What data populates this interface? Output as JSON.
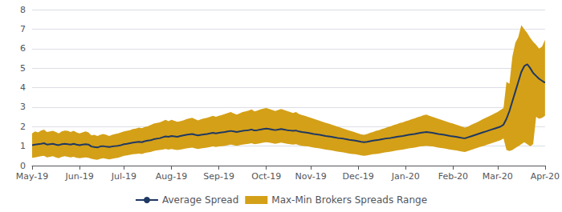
{
  "chart_data": {
    "type": "line",
    "categories": [
      "May-19",
      null,
      null,
      null,
      null,
      null,
      null,
      null,
      null,
      null,
      null,
      null,
      null,
      null,
      null,
      null,
      "Jun-19",
      null,
      null,
      null,
      null,
      null,
      null,
      null,
      null,
      null,
      null,
      null,
      null,
      null,
      null,
      "Jul-19",
      null,
      null,
      null,
      null,
      null,
      null,
      null,
      null,
      null,
      null,
      null,
      null,
      null,
      null,
      null,
      "Aug-19",
      null,
      null,
      null,
      null,
      null,
      null,
      null,
      null,
      null,
      null,
      null,
      null,
      null,
      null,
      null,
      "Sep-19",
      null,
      null,
      null,
      null,
      null,
      null,
      null,
      null,
      null,
      null,
      null,
      null,
      null,
      null,
      null,
      "Oct-19",
      null,
      null,
      null,
      null,
      null,
      null,
      null,
      null,
      null,
      null,
      null,
      null,
      null,
      null,
      "Nov-19",
      null,
      null,
      null,
      null,
      null,
      null,
      null,
      null,
      null,
      null,
      null,
      null,
      null,
      null,
      null,
      "Dec-19",
      null,
      null,
      null,
      null,
      null,
      null,
      null,
      null,
      null,
      null,
      null,
      null,
      null,
      null,
      null,
      "Jan-20",
      null,
      null,
      null,
      null,
      null,
      null,
      null,
      null,
      null,
      null,
      null,
      null,
      null,
      null,
      null,
      "Feb-20",
      null,
      null,
      null,
      null,
      null,
      null,
      null,
      null,
      null,
      null,
      null,
      null,
      null,
      null,
      "Mar-20",
      null,
      null,
      null,
      null,
      null,
      null,
      null,
      null,
      null,
      null,
      null,
      null,
      null,
      null,
      null,
      "Apr-20"
    ],
    "series": [
      {
        "name": "Average Spread",
        "type": "line",
        "color": "#1f3864",
        "values": [
          1.05,
          1.08,
          1.1,
          1.12,
          1.15,
          1.08,
          1.1,
          1.12,
          1.08,
          1.05,
          1.1,
          1.12,
          1.1,
          1.08,
          1.12,
          1.08,
          1.05,
          1.08,
          1.1,
          1.08,
          0.98,
          0.95,
          0.93,
          0.98,
          1.0,
          0.97,
          0.95,
          0.98,
          1.0,
          1.02,
          1.05,
          1.1,
          1.12,
          1.15,
          1.18,
          1.2,
          1.22,
          1.2,
          1.25,
          1.28,
          1.3,
          1.35,
          1.38,
          1.4,
          1.45,
          1.5,
          1.48,
          1.52,
          1.5,
          1.48,
          1.52,
          1.55,
          1.58,
          1.6,
          1.62,
          1.58,
          1.55,
          1.58,
          1.6,
          1.62,
          1.65,
          1.68,
          1.65,
          1.68,
          1.7,
          1.72,
          1.75,
          1.78,
          1.75,
          1.72,
          1.75,
          1.78,
          1.8,
          1.82,
          1.85,
          1.8,
          1.82,
          1.85,
          1.88,
          1.9,
          1.88,
          1.85,
          1.82,
          1.85,
          1.88,
          1.85,
          1.82,
          1.8,
          1.78,
          1.8,
          1.75,
          1.72,
          1.7,
          1.68,
          1.65,
          1.62,
          1.6,
          1.58,
          1.55,
          1.52,
          1.5,
          1.48,
          1.45,
          1.42,
          1.4,
          1.38,
          1.35,
          1.32,
          1.3,
          1.28,
          1.25,
          1.22,
          1.2,
          1.22,
          1.25,
          1.28,
          1.3,
          1.32,
          1.35,
          1.38,
          1.4,
          1.42,
          1.45,
          1.48,
          1.5,
          1.52,
          1.55,
          1.58,
          1.6,
          1.62,
          1.65,
          1.68,
          1.7,
          1.72,
          1.7,
          1.68,
          1.65,
          1.62,
          1.6,
          1.58,
          1.55,
          1.52,
          1.5,
          1.48,
          1.45,
          1.42,
          1.4,
          1.45,
          1.5,
          1.55,
          1.6,
          1.65,
          1.7,
          1.75,
          1.8,
          1.85,
          1.9,
          1.95,
          2.0,
          2.1,
          2.4,
          2.8,
          3.3,
          3.8,
          4.3,
          4.8,
          5.1,
          5.2,
          5.0,
          4.75,
          4.6,
          4.45,
          4.35,
          4.25
        ]
      },
      {
        "name": "Max-Min Brokers Spreads Range",
        "type": "band",
        "color": "#d4a017",
        "low": [
          0.4,
          0.42,
          0.45,
          0.48,
          0.5,
          0.42,
          0.45,
          0.48,
          0.42,
          0.38,
          0.45,
          0.48,
          0.45,
          0.42,
          0.45,
          0.4,
          0.38,
          0.4,
          0.42,
          0.4,
          0.35,
          0.32,
          0.3,
          0.35,
          0.38,
          0.35,
          0.32,
          0.35,
          0.38,
          0.4,
          0.45,
          0.5,
          0.52,
          0.55,
          0.58,
          0.6,
          0.62,
          0.6,
          0.65,
          0.68,
          0.7,
          0.75,
          0.78,
          0.8,
          0.82,
          0.85,
          0.82,
          0.85,
          0.82,
          0.8,
          0.82,
          0.85,
          0.88,
          0.9,
          0.92,
          0.88,
          0.85,
          0.88,
          0.9,
          0.92,
          0.95,
          0.98,
          0.95,
          0.98,
          1.0,
          1.02,
          1.05,
          1.08,
          1.05,
          1.02,
          1.05,
          1.08,
          1.1,
          1.12,
          1.15,
          1.1,
          1.12,
          1.15,
          1.18,
          1.2,
          1.18,
          1.15,
          1.12,
          1.15,
          1.18,
          1.15,
          1.12,
          1.1,
          1.08,
          1.1,
          1.05,
          1.02,
          1.0,
          0.98,
          0.95,
          0.92,
          0.9,
          0.88,
          0.85,
          0.82,
          0.8,
          0.78,
          0.75,
          0.72,
          0.7,
          0.68,
          0.65,
          0.62,
          0.6,
          0.58,
          0.55,
          0.52,
          0.5,
          0.52,
          0.55,
          0.58,
          0.6,
          0.62,
          0.65,
          0.68,
          0.7,
          0.72,
          0.75,
          0.78,
          0.8,
          0.82,
          0.85,
          0.88,
          0.9,
          0.92,
          0.95,
          0.98,
          1.0,
          1.02,
          1.0,
          0.98,
          0.95,
          0.92,
          0.9,
          0.88,
          0.85,
          0.82,
          0.8,
          0.78,
          0.75,
          0.72,
          0.7,
          0.75,
          0.8,
          0.85,
          0.9,
          0.95,
          1.0,
          1.05,
          1.1,
          1.15,
          1.2,
          1.25,
          1.3,
          1.4,
          0.8,
          0.75,
          0.8,
          0.9,
          1.0,
          1.1,
          1.2,
          1.1,
          1.0,
          1.1,
          2.5,
          2.4,
          2.45,
          2.55
        ],
        "high": [
          1.65,
          1.75,
          1.7,
          1.8,
          1.85,
          1.72,
          1.75,
          1.78,
          1.72,
          1.65,
          1.75,
          1.8,
          1.78,
          1.72,
          1.78,
          1.7,
          1.65,
          1.7,
          1.75,
          1.7,
          1.55,
          1.58,
          1.52,
          1.58,
          1.62,
          1.58,
          1.52,
          1.58,
          1.62,
          1.65,
          1.7,
          1.75,
          1.78,
          1.82,
          1.88,
          1.9,
          1.95,
          1.92,
          1.98,
          2.02,
          2.08,
          2.15,
          2.18,
          2.22,
          2.28,
          2.35,
          2.28,
          2.35,
          2.3,
          2.25,
          2.28,
          2.32,
          2.38,
          2.42,
          2.45,
          2.38,
          2.32,
          2.38,
          2.42,
          2.45,
          2.5,
          2.55,
          2.5,
          2.55,
          2.6,
          2.65,
          2.7,
          2.75,
          2.68,
          2.62,
          2.68,
          2.75,
          2.78,
          2.82,
          2.88,
          2.78,
          2.82,
          2.88,
          2.92,
          2.95,
          2.9,
          2.85,
          2.8,
          2.85,
          2.9,
          2.85,
          2.8,
          2.75,
          2.7,
          2.75,
          2.65,
          2.6,
          2.55,
          2.5,
          2.45,
          2.4,
          2.35,
          2.3,
          2.25,
          2.2,
          2.15,
          2.1,
          2.05,
          2.0,
          1.95,
          1.9,
          1.85,
          1.8,
          1.75,
          1.7,
          1.65,
          1.6,
          1.58,
          1.62,
          1.68,
          1.72,
          1.78,
          1.82,
          1.88,
          1.92,
          1.98,
          2.02,
          2.08,
          2.12,
          2.18,
          2.22,
          2.28,
          2.32,
          2.38,
          2.42,
          2.48,
          2.52,
          2.58,
          2.62,
          2.55,
          2.5,
          2.45,
          2.4,
          2.35,
          2.3,
          2.25,
          2.2,
          2.15,
          2.1,
          2.05,
          2.0,
          1.95,
          2.0,
          2.08,
          2.15,
          2.22,
          2.3,
          2.38,
          2.45,
          2.52,
          2.6,
          2.68,
          2.75,
          2.85,
          2.95,
          4.3,
          4.2,
          5.6,
          6.3,
          6.6,
          7.2,
          7.0,
          6.8,
          6.55,
          6.35,
          6.2,
          6.0,
          6.1,
          6.45
        ]
      }
    ],
    "ylim": [
      0,
      8
    ],
    "yticks": [
      0,
      1,
      2,
      3,
      4,
      5,
      6,
      7,
      8
    ],
    "grid": true,
    "legend": "bottom"
  }
}
